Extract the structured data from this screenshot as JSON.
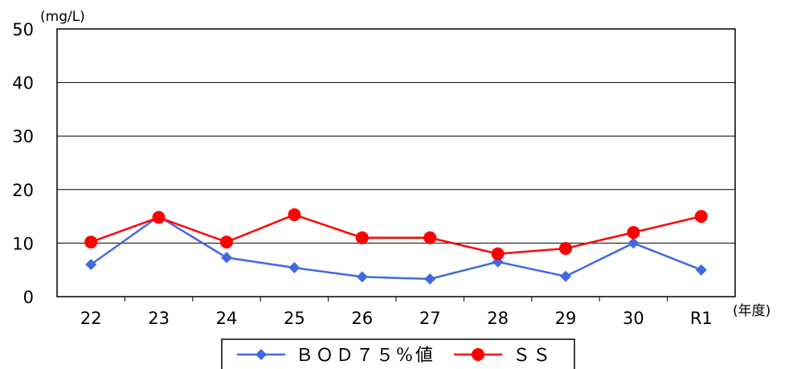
{
  "chart_data": {
    "type": "line",
    "categories": [
      "22",
      "23",
      "24",
      "25",
      "26",
      "27",
      "28",
      "29",
      "30",
      "R1"
    ],
    "x_unit": "(年度)",
    "y_unit": "(mg/L)",
    "ylim": [
      0,
      50
    ],
    "y_ticks": [
      "0",
      "10",
      "20",
      "30",
      "40",
      "50"
    ],
    "grid": true,
    "legend_position": "bottom",
    "series": [
      {
        "name": "ＢＯＤ７５%値",
        "color": "#4169e1",
        "marker": "diamond",
        "values": [
          6,
          15,
          7.3,
          5.4,
          3.7,
          3.3,
          6.5,
          3.8,
          10,
          5
        ]
      },
      {
        "name": "ＳＳ",
        "color": "#ff0000",
        "marker": "circle",
        "values": [
          10.2,
          14.8,
          10.2,
          15.3,
          11,
          11,
          8,
          9,
          12,
          15
        ]
      }
    ]
  }
}
